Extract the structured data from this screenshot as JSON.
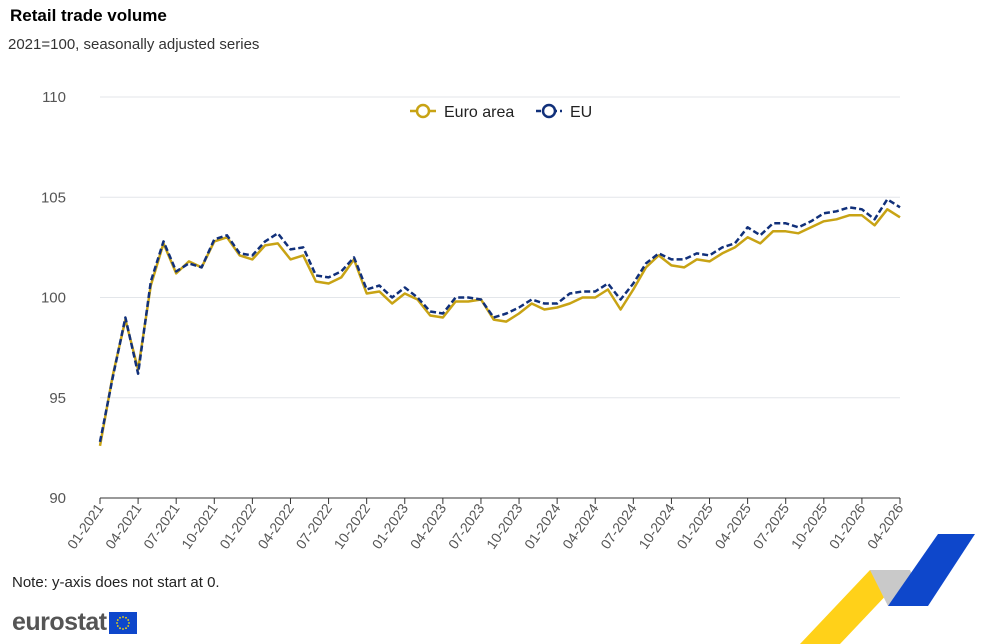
{
  "header": {
    "title": "Retail trade volume",
    "subtitle": "2021=100, seasonally adjusted series"
  },
  "footer": {
    "note": "Note: y-axis does not start at 0.",
    "logo_text": "eurostat"
  },
  "colors": {
    "euro_area": "#c8a314",
    "eu": "#11307a",
    "grid": "#e3e6ea"
  },
  "chart_data": {
    "type": "line",
    "title": "Retail trade volume",
    "subtitle": "2021=100, seasonally adjusted series",
    "xlabel": "",
    "ylabel": "",
    "ylim": [
      90,
      110
    ],
    "yticks": [
      90,
      95,
      100,
      105,
      110
    ],
    "grid": true,
    "legend_position": "top-center",
    "xtick_labels": [
      "01-2021",
      "04-2021",
      "07-2021",
      "10-2021",
      "01-2022",
      "04-2022",
      "07-2022",
      "10-2022",
      "01-2023",
      "04-2023",
      "07-2023",
      "10-2023",
      "01-2024",
      "04-2024",
      "07-2024",
      "10-2024",
      "01-2025",
      "04-2025",
      "07-2025",
      "10-2025",
      "01-2026",
      "04-2026"
    ],
    "x": [
      "01-2021",
      "02-2021",
      "03-2021",
      "04-2021",
      "05-2021",
      "06-2021",
      "07-2021",
      "08-2021",
      "09-2021",
      "10-2021",
      "11-2021",
      "12-2021",
      "01-2022",
      "02-2022",
      "03-2022",
      "04-2022",
      "05-2022",
      "06-2022",
      "07-2022",
      "08-2022",
      "09-2022",
      "10-2022",
      "11-2022",
      "12-2022",
      "01-2023",
      "02-2023",
      "03-2023",
      "04-2023",
      "05-2023",
      "06-2023",
      "07-2023",
      "08-2023",
      "09-2023",
      "10-2023",
      "11-2023",
      "12-2023",
      "01-2024",
      "02-2024",
      "03-2024",
      "04-2024",
      "05-2024",
      "06-2024",
      "07-2024",
      "08-2024",
      "09-2024",
      "10-2024",
      "11-2024",
      "12-2024",
      "01-2025",
      "02-2025",
      "03-2025",
      "04-2025",
      "05-2025",
      "06-2025",
      "07-2025",
      "08-2025",
      "09-2025",
      "10-2025",
      "11-2025",
      "12-2025",
      "01-2026",
      "02-2026",
      "03-2026",
      "04-2026"
    ],
    "series": [
      {
        "name": "Euro area",
        "style": "solid",
        "values": [
          92.6,
          96.1,
          98.9,
          96.4,
          100.6,
          102.7,
          101.2,
          101.8,
          101.5,
          102.8,
          103.0,
          102.1,
          101.9,
          102.6,
          102.7,
          101.9,
          102.1,
          100.8,
          100.7,
          101.0,
          101.9,
          100.2,
          100.3,
          99.7,
          100.2,
          99.9,
          99.1,
          99.0,
          99.8,
          99.8,
          99.9,
          98.9,
          98.8,
          99.2,
          99.7,
          99.4,
          99.5,
          99.7,
          100.0,
          100.0,
          100.4,
          99.4,
          100.4,
          101.5,
          102.1,
          101.6,
          101.5,
          101.9,
          101.8,
          102.2,
          102.5,
          103.0,
          102.7,
          103.3,
          103.3,
          103.2,
          103.5,
          103.8,
          103.9,
          104.1,
          104.1,
          103.6,
          104.4,
          104.0
        ]
      },
      {
        "name": "EU",
        "style": "dashed",
        "values": [
          92.8,
          96.0,
          99.0,
          96.2,
          100.8,
          102.8,
          101.3,
          101.7,
          101.5,
          102.9,
          103.1,
          102.2,
          102.1,
          102.8,
          103.2,
          102.4,
          102.5,
          101.1,
          101.0,
          101.3,
          102.0,
          100.4,
          100.6,
          100.0,
          100.5,
          100.0,
          99.3,
          99.2,
          100.0,
          100.0,
          99.9,
          99.0,
          99.2,
          99.5,
          99.9,
          99.7,
          99.7,
          100.2,
          100.3,
          100.3,
          100.7,
          99.9,
          100.7,
          101.7,
          102.2,
          101.9,
          101.9,
          102.2,
          102.1,
          102.5,
          102.7,
          103.5,
          103.1,
          103.7,
          103.7,
          103.5,
          103.8,
          104.2,
          104.3,
          104.5,
          104.4,
          103.9,
          104.9,
          104.5
        ]
      }
    ]
  }
}
